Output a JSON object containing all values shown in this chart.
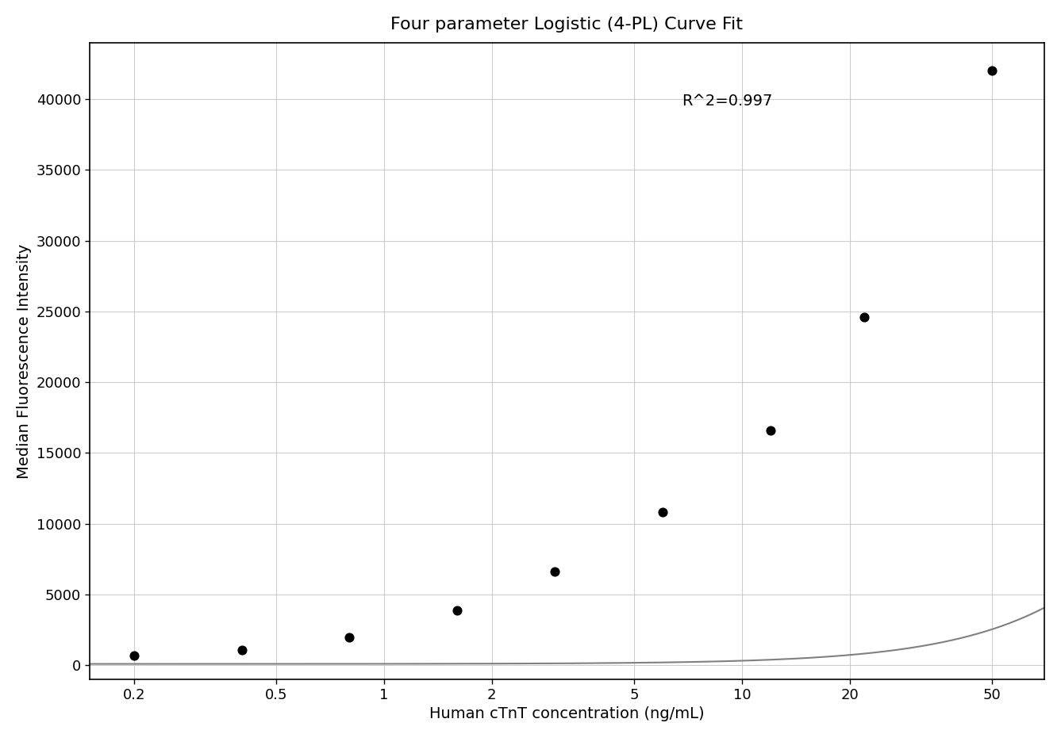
{
  "title": "Four parameter Logistic (4-PL) Curve Fit",
  "xlabel": "Human cTnT concentration (ng/mL)",
  "ylabel": "Median Fluorescence Intensity",
  "r_squared_text": "R^2=0.997",
  "scatter_x": [
    0.2,
    0.4,
    0.8,
    1.6,
    3.0,
    6.0,
    12.0,
    22.0,
    50.0
  ],
  "scatter_y": [
    700,
    1100,
    2000,
    3900,
    6600,
    10800,
    16600,
    24600,
    42000
  ],
  "xscale": "log",
  "xlim": [
    0.15,
    70
  ],
  "ylim": [
    -1000,
    44000
  ],
  "yticks": [
    0,
    5000,
    10000,
    15000,
    20000,
    25000,
    30000,
    35000,
    40000
  ],
  "xticks": [
    0.2,
    0.5,
    1,
    2,
    5,
    10,
    20,
    50
  ],
  "xtick_labels": [
    "0.2",
    "0.5",
    "1",
    "2",
    "5",
    "10",
    "20",
    "50"
  ],
  "curve_color": "#808080",
  "scatter_color": "#000000",
  "scatter_size": 60,
  "background_color": "#ffffff",
  "grid_color": "#cccccc",
  "title_fontsize": 16,
  "label_fontsize": 14,
  "tick_fontsize": 13,
  "annotation_fontsize": 14
}
